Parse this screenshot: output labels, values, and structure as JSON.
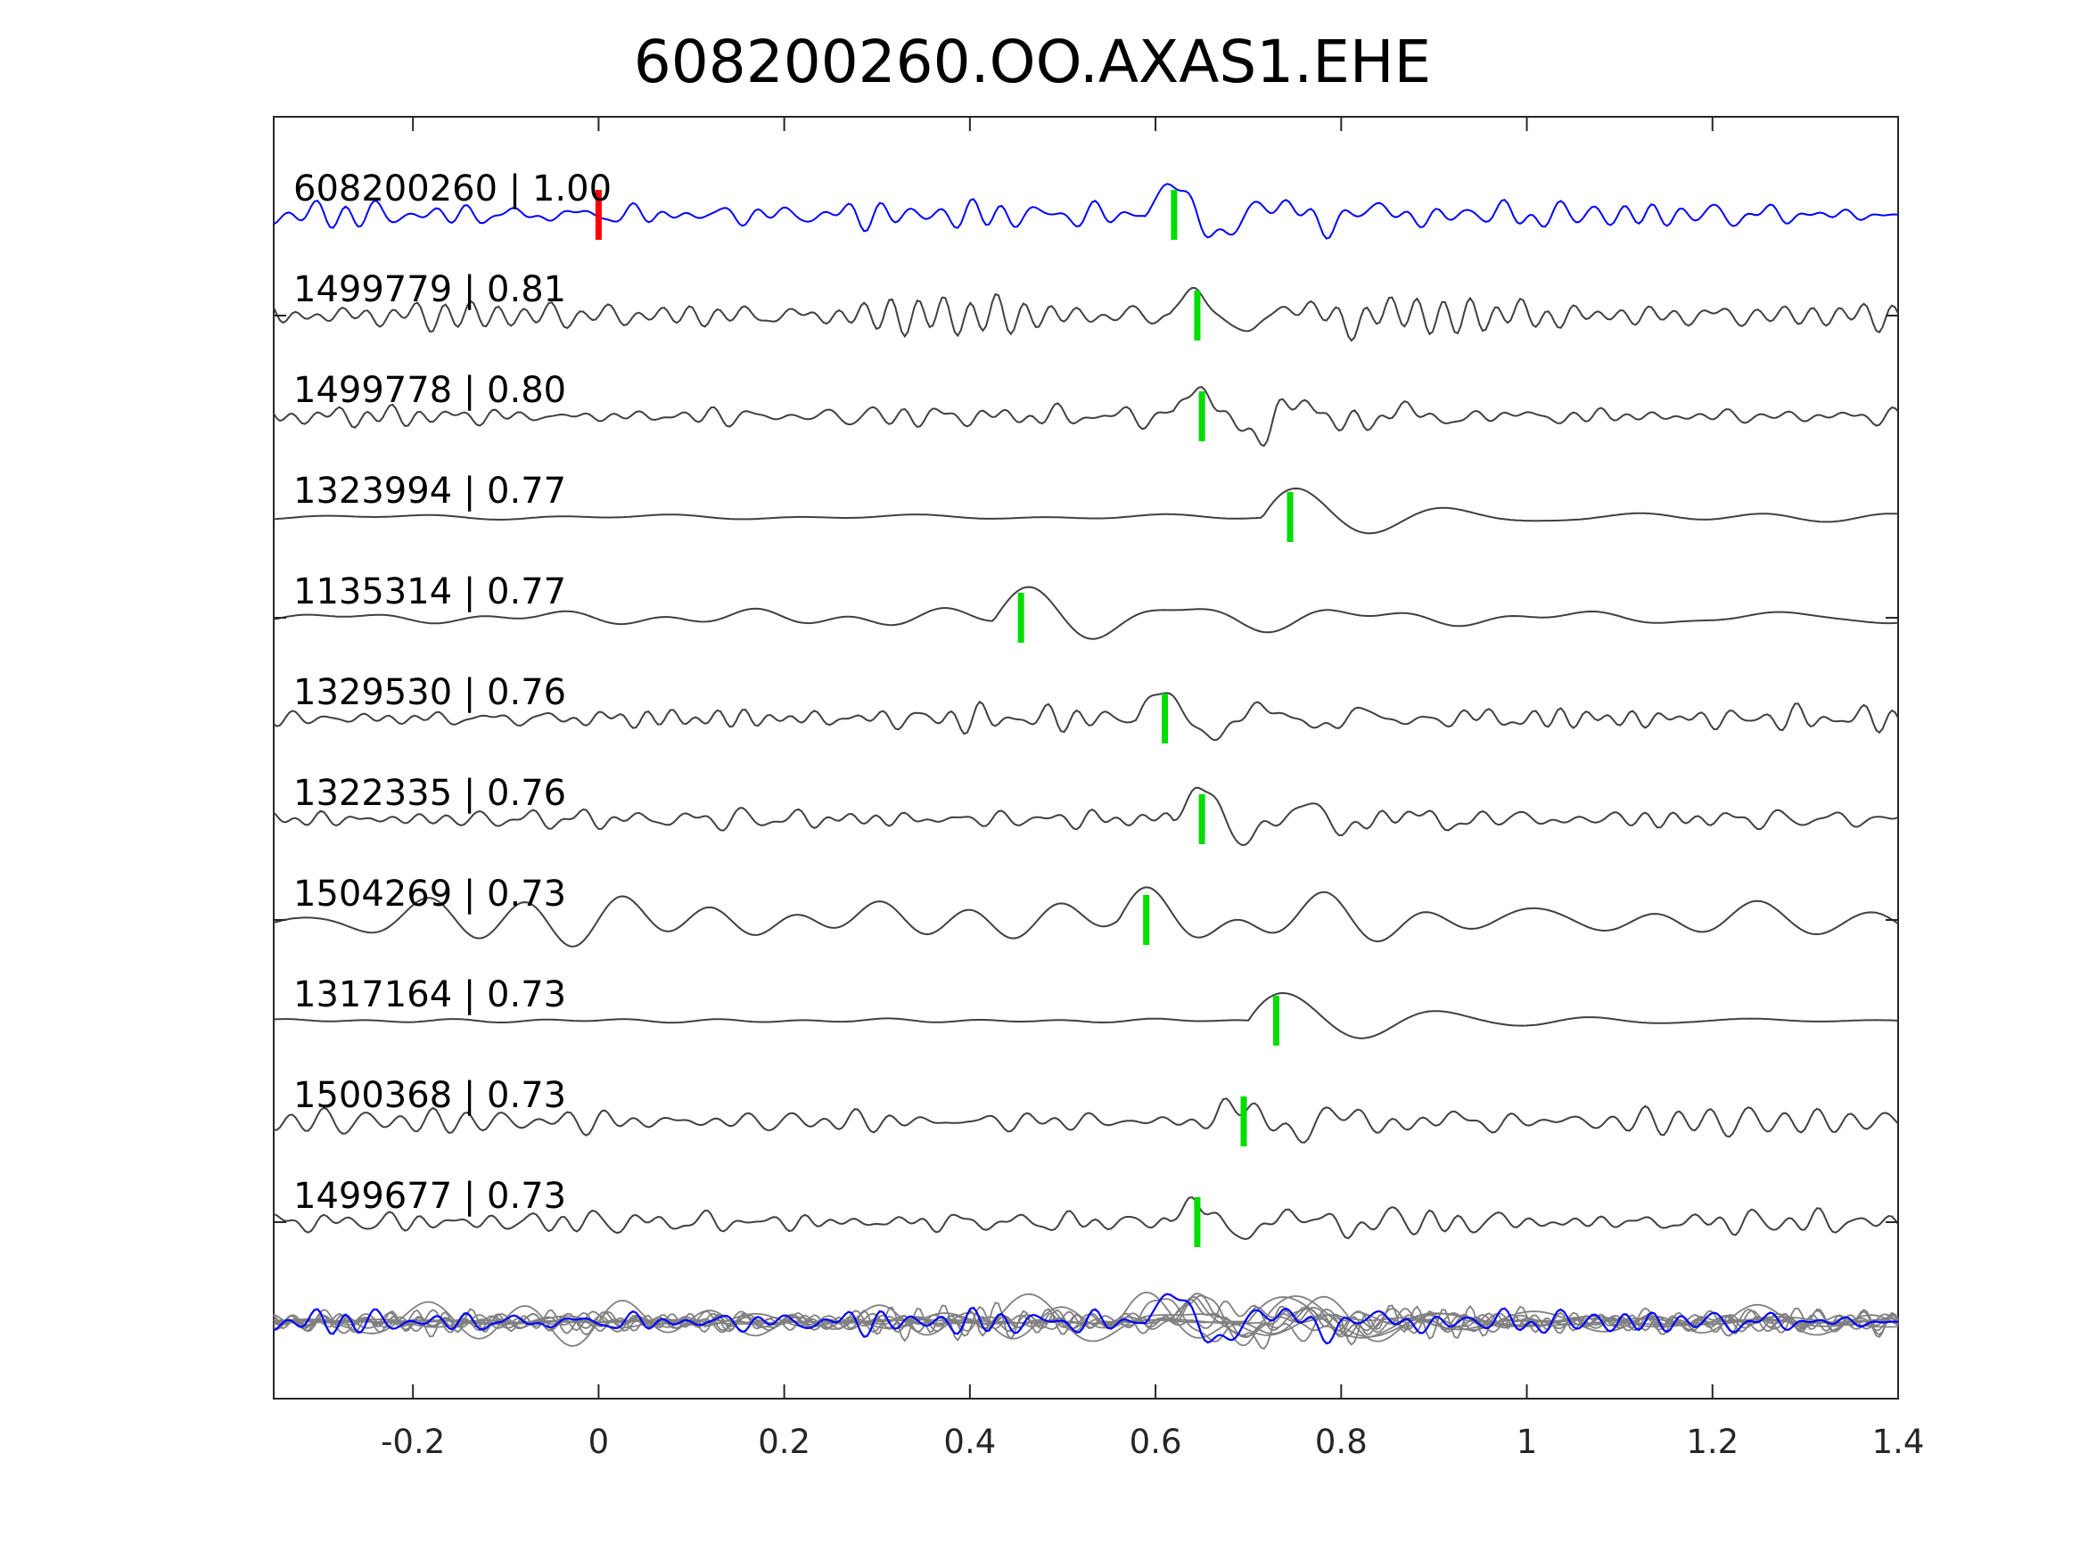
{
  "chart_data": {
    "type": "line",
    "title": "608200260.OO.AXAS1.EHE",
    "xlabel": "",
    "ylabel": "",
    "xlim": [
      -0.35,
      1.4
    ],
    "x_ticks": [
      "-0.2",
      "0",
      "0.2",
      "0.4",
      "0.6",
      "0.8",
      "1",
      "1.2",
      "1.4"
    ],
    "x_tick_values": [
      -0.2,
      0,
      0.2,
      0.4,
      0.6,
      0.8,
      1.0,
      1.2,
      1.4
    ],
    "grid": false,
    "reference_pick": 0.0,
    "series": [
      {
        "name": "608200260 | 1.00",
        "color": "#0000ff",
        "pick": 0.62,
        "style": "hf",
        "seed": 11,
        "amp": 0.35,
        "event": [
          0.59,
          0.95
        ]
      },
      {
        "name": "1499779 | 0.81",
        "color": "#404040",
        "pick": 0.645,
        "style": "hf",
        "seed": 23,
        "amp": 0.55,
        "event": [
          0.63,
          0.7
        ]
      },
      {
        "name": "1499778 | 0.80",
        "color": "#404040",
        "pick": 0.65,
        "style": "hf",
        "seed": 37,
        "amp": 0.4,
        "event": [
          0.64,
          0.9
        ]
      },
      {
        "name": "1323994 | 0.77",
        "color": "#404040",
        "pick": 0.745,
        "style": "lf",
        "seed": 41,
        "amp": 0.18,
        "event": [
          0.74,
          1.0
        ]
      },
      {
        "name": "1135314 | 0.77",
        "color": "#404040",
        "pick": 0.455,
        "style": "lf",
        "seed": 53,
        "amp": 0.2,
        "event": [
          0.45,
          1.0
        ]
      },
      {
        "name": "1329530 | 0.76",
        "color": "#404040",
        "pick": 0.61,
        "style": "hf",
        "seed": 67,
        "amp": 0.35,
        "event": [
          0.6,
          0.85
        ]
      },
      {
        "name": "1322335 | 0.76",
        "color": "#404040",
        "pick": 0.65,
        "style": "hf",
        "seed": 71,
        "amp": 0.3,
        "event": [
          0.64,
          0.95
        ]
      },
      {
        "name": "1504269 | 0.73",
        "color": "#404040",
        "pick": 0.59,
        "style": "lf",
        "seed": 83,
        "amp": 0.5,
        "event": [
          0.58,
          0.75
        ]
      },
      {
        "name": "1317164 | 0.73",
        "color": "#404040",
        "pick": 0.73,
        "style": "lf",
        "seed": 97,
        "amp": 0.06,
        "event": [
          0.73,
          1.0
        ]
      },
      {
        "name": "1500368 | 0.73",
        "color": "#404040",
        "pick": 0.695,
        "style": "hf",
        "seed": 101,
        "amp": 0.4,
        "event": [
          0.69,
          0.6
        ]
      },
      {
        "name": "1499677 | 0.73",
        "color": "#404040",
        "pick": 0.645,
        "style": "hf",
        "seed": 113,
        "amp": 0.35,
        "event": [
          0.64,
          0.6
        ]
      }
    ],
    "stack": {
      "template_color": "#0000ff",
      "others_color": "#808080"
    },
    "colors": {
      "reference_pick": "#ff0000",
      "picks": "#00dd00"
    }
  }
}
